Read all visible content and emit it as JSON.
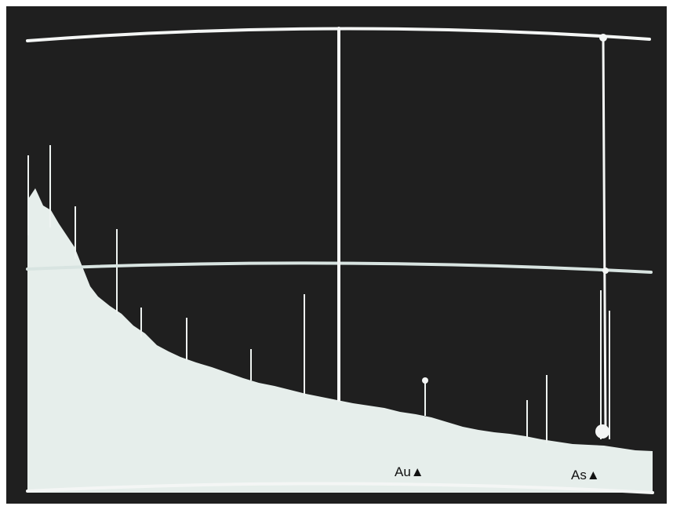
{
  "labels": {
    "au": "Au▲",
    "as": "As▲"
  }
}
